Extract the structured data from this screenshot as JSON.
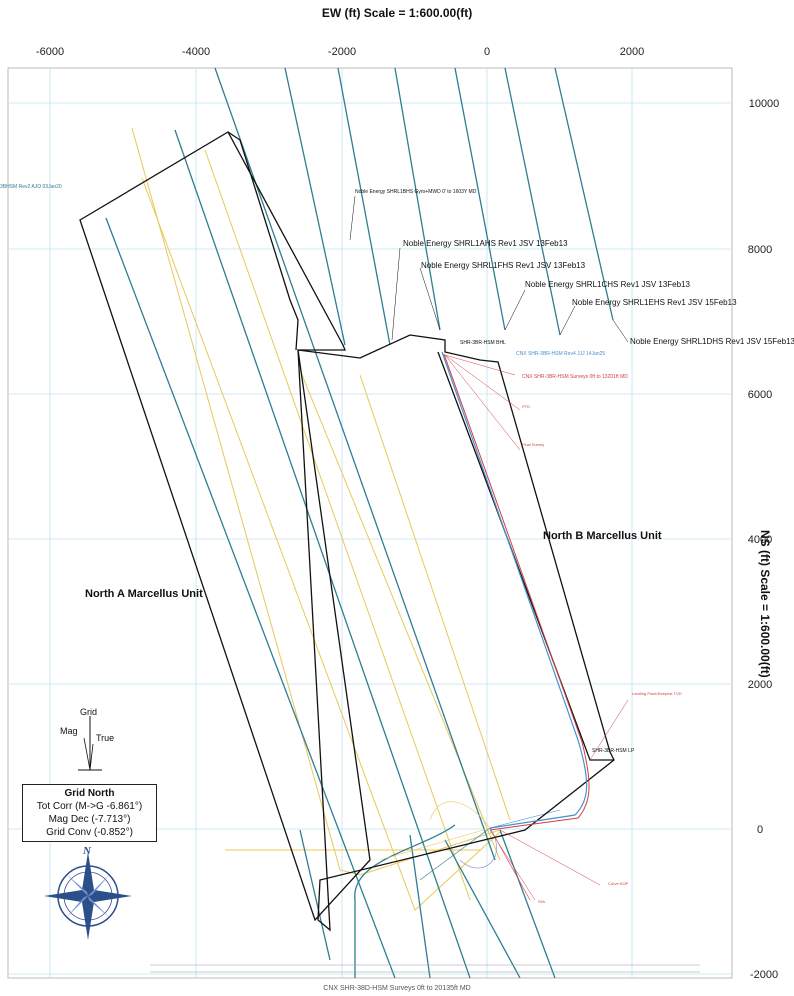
{
  "header": {
    "x_axis_title": "EW (ft) Scale = 1:600.00(ft)"
  },
  "side": {
    "y_axis_title": "NS (ft) Scale = 1:600.00(ft)"
  },
  "x_ticks": [
    "-6000",
    "-4000",
    "-2000",
    "0",
    "2000"
  ],
  "y_ticks": [
    "10000",
    "8000",
    "6000",
    "4000",
    "2000",
    "0",
    "-2000"
  ],
  "units": {
    "north_a": "North A Marcellus Unit",
    "north_b": "North B Marcellus Unit"
  },
  "well_labels": {
    "shrl1bhs": "Noble Energy SHRL1BHS Gyro+MWD 0' to 1603Y MD",
    "shrl1ahs": "Noble Energy SHRL1AHS Rev1 JSV 13Feb13",
    "shrl1fhs": "Noble Energy SHRL1FHS Rev1 JSV 13Feb13",
    "shrl1chs": "Noble Energy SHRL1CHS Rev1 JSV 13Feb13",
    "shrl1ehs": "Noble Energy SHRL1EHS Rev1 JSV 15Feb13",
    "shrl1dhs": "Noble Energy SHRL1DHS Rev1 JSV 15Feb13",
    "bhl": "SHR-3BR-HSM BHL",
    "lp": "SHR-3BR-HSM LP",
    "cnx_plan": "CNX SHR-3BR-HSM Rev4 JJJ 14Jan25",
    "cnx_surveys": "CNX SHR-3BR-HSM Surveys 0ft to 13201ft MD",
    "left_edge": "3BHSM Rev2 AJO 03Jan20"
  },
  "red_notes": {
    "pto_title": "PTD",
    "final_title": "Final Survey",
    "landing_title": "Landing Point/Deepest TVD",
    "curve_title": "Curve KOP",
    "shl_title": "SHL"
  },
  "compass": {
    "grid": "Grid",
    "mag": "Mag",
    "true": "True",
    "north_letter": "N"
  },
  "legend": {
    "title": "Grid North",
    "tot_corr": "Tot Corr (M->G -6.861°)",
    "mag_dec": "Mag Dec (-7.713°)",
    "grid_conv": "Grid Conv (-0.852°)"
  },
  "footer": {
    "text": "CNX SHR-38D-HSM Surveys 0ft to 20135ft MD"
  },
  "colors": {
    "boundary": "#111111",
    "teal": "#2e7e92",
    "yellow": "#e8c85a",
    "red": "#d04040",
    "blue": "#4a8fd0",
    "grid": "#bfe3f0"
  }
}
